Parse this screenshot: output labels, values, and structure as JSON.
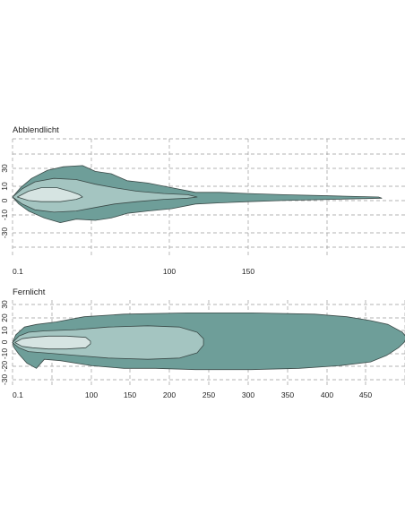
{
  "chart_data": [
    {
      "type": "area",
      "title": "Abblendlicht",
      "x_ticks": [
        "0.1",
        "100",
        "150"
      ],
      "y_ticks": [
        "30",
        "10",
        "0",
        "-10",
        "-30"
      ],
      "xlim": [
        0,
        250
      ],
      "ylim": [
        -50,
        50
      ],
      "grid": true,
      "colors": {
        "outer": "#6e9e99",
        "middle": "#a4c5c1",
        "inner": "#d6e4e2",
        "outline": "#3b4a48",
        "grid": "#9a9a9a"
      },
      "zones": [
        {
          "outline": [
            [
              0,
              0
            ],
            [
              5,
              8
            ],
            [
              12,
              16
            ],
            [
              22,
              23
            ],
            [
              32,
              26
            ],
            [
              44,
              27
            ],
            [
              52,
              22
            ],
            [
              62,
              20
            ],
            [
              72,
              14
            ],
            [
              85,
              12
            ],
            [
              100,
              8
            ],
            [
              115,
              4
            ],
            [
              130,
              4
            ],
            [
              148,
              3
            ],
            [
              170,
              2
            ],
            [
              200,
              1
            ],
            [
              230,
              0
            ],
            [
              232,
              -1
            ],
            [
              200,
              -2
            ],
            [
              170,
              -3
            ],
            [
              148,
              -4
            ],
            [
              130,
              -5
            ],
            [
              115,
              -6
            ],
            [
              100,
              -10
            ],
            [
              85,
              -12
            ],
            [
              72,
              -14
            ],
            [
              62,
              -18
            ],
            [
              52,
              -20
            ],
            [
              40,
              -19
            ],
            [
              30,
              -22
            ],
            [
              20,
              -18
            ],
            [
              10,
              -12
            ],
            [
              4,
              -6
            ],
            [
              0,
              0
            ]
          ]
        },
        {
          "outline": [
            [
              0,
              0
            ],
            [
              6,
              7
            ],
            [
              14,
              13
            ],
            [
              26,
              16
            ],
            [
              40,
              15
            ],
            [
              52,
              11
            ],
            [
              64,
              8
            ],
            [
              78,
              5
            ],
            [
              95,
              3
            ],
            [
              110,
              2
            ],
            [
              116,
              0
            ],
            [
              110,
              -1
            ],
            [
              95,
              -2
            ],
            [
              78,
              -4
            ],
            [
              64,
              -6
            ],
            [
              52,
              -9
            ],
            [
              40,
              -12
            ],
            [
              26,
              -13
            ],
            [
              14,
              -11
            ],
            [
              6,
              -6
            ],
            [
              0,
              0
            ]
          ]
        },
        {
          "outline": [
            [
              3,
              0
            ],
            [
              10,
              5
            ],
            [
              18,
              8
            ],
            [
              28,
              8
            ],
            [
              36,
              5
            ],
            [
              42,
              2
            ],
            [
              44,
              0
            ],
            [
              40,
              -2
            ],
            [
              30,
              -4
            ],
            [
              18,
              -4
            ],
            [
              10,
              -3
            ],
            [
              3,
              0
            ]
          ]
        }
      ]
    },
    {
      "type": "area",
      "title": "Fernlicht",
      "x_ticks": [
        "0.1",
        "100",
        "150",
        "200",
        "250",
        "300",
        "350",
        "400",
        "450"
      ],
      "y_ticks": [
        "30",
        "20",
        "10",
        "0",
        "-10",
        "-20",
        "-30"
      ],
      "xlim": [
        0,
        500
      ],
      "ylim": [
        -33,
        33
      ],
      "grid": true,
      "colors": {
        "outer": "#6e9e99",
        "middle": "#a4c5c1",
        "inner": "#d6e4e2",
        "outline": "#3b4a48",
        "grid": "#9a9a9a"
      },
      "zones": [
        {
          "outline": [
            [
              0,
              0
            ],
            [
              4,
              6
            ],
            [
              15,
              12
            ],
            [
              30,
              14
            ],
            [
              55,
              16
            ],
            [
              90,
              20
            ],
            [
              140,
              22
            ],
            [
              220,
              23
            ],
            [
              300,
              23
            ],
            [
              380,
              22
            ],
            [
              420,
              20
            ],
            [
              450,
              17
            ],
            [
              472,
              14
            ],
            [
              490,
              8
            ],
            [
              495,
              4
            ],
            [
              492,
              0
            ],
            [
              485,
              -4
            ],
            [
              470,
              -10
            ],
            [
              450,
              -15
            ],
            [
              410,
              -18
            ],
            [
              360,
              -20
            ],
            [
              300,
              -21
            ],
            [
              230,
              -21
            ],
            [
              180,
              -20
            ],
            [
              140,
              -20
            ],
            [
              100,
              -18
            ],
            [
              60,
              -14
            ],
            [
              40,
              -13
            ],
            [
              30,
              -20
            ],
            [
              18,
              -16
            ],
            [
              8,
              -9
            ],
            [
              2,
              -4
            ],
            [
              0,
              0
            ]
          ]
        },
        {
          "outline": [
            [
              0,
              0
            ],
            [
              8,
              5
            ],
            [
              20,
              8
            ],
            [
              40,
              9
            ],
            [
              80,
              10
            ],
            [
              120,
              12
            ],
            [
              170,
              13
            ],
            [
              210,
              12
            ],
            [
              232,
              8
            ],
            [
              240,
              3
            ],
            [
              240,
              -2
            ],
            [
              232,
              -8
            ],
            [
              210,
              -12
            ],
            [
              170,
              -13
            ],
            [
              120,
              -12
            ],
            [
              80,
              -10
            ],
            [
              40,
              -8
            ],
            [
              20,
              -7
            ],
            [
              8,
              -4
            ],
            [
              0,
              0
            ]
          ]
        },
        {
          "outline": [
            [
              3,
              0
            ],
            [
              12,
              3
            ],
            [
              25,
              4
            ],
            [
              45,
              5
            ],
            [
              68,
              5
            ],
            [
              92,
              4
            ],
            [
              98,
              1
            ],
            [
              98,
              -1
            ],
            [
              92,
              -4
            ],
            [
              68,
              -5
            ],
            [
              45,
              -5
            ],
            [
              25,
              -4
            ],
            [
              12,
              -3
            ],
            [
              3,
              0
            ]
          ]
        }
      ]
    }
  ]
}
